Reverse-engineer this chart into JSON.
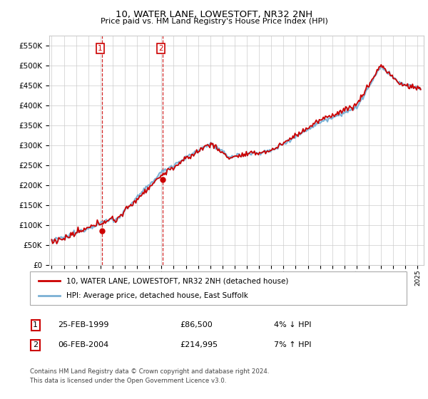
{
  "title": "10, WATER LANE, LOWESTOFT, NR32 2NH",
  "subtitle": "Price paid vs. HM Land Registry's House Price Index (HPI)",
  "legend_line1": "10, WATER LANE, LOWESTOFT, NR32 2NH (detached house)",
  "legend_line2": "HPI: Average price, detached house, East Suffolk",
  "transaction1_label": "1",
  "transaction1_date": "25-FEB-1999",
  "transaction1_price": "£86,500",
  "transaction1_hpi": "4% ↓ HPI",
  "transaction2_label": "2",
  "transaction2_date": "06-FEB-2004",
  "transaction2_price": "£214,995",
  "transaction2_hpi": "7% ↑ HPI",
  "footnote1": "Contains HM Land Registry data © Crown copyright and database right 2024.",
  "footnote2": "This data is licensed under the Open Government Licence v3.0.",
  "red_color": "#cc0000",
  "blue_color": "#7ab0d4",
  "shaded_color": "#c8dff0",
  "grid_color": "#cccccc",
  "ylim": [
    0,
    575000
  ],
  "yticks": [
    0,
    50000,
    100000,
    150000,
    200000,
    250000,
    300000,
    350000,
    400000,
    450000,
    500000,
    550000
  ],
  "x_start_year": 1995,
  "x_end_year": 2025,
  "t1_year": 1999.12,
  "t1_price": 86500,
  "t2_year": 2004.09,
  "t2_price": 214995
}
